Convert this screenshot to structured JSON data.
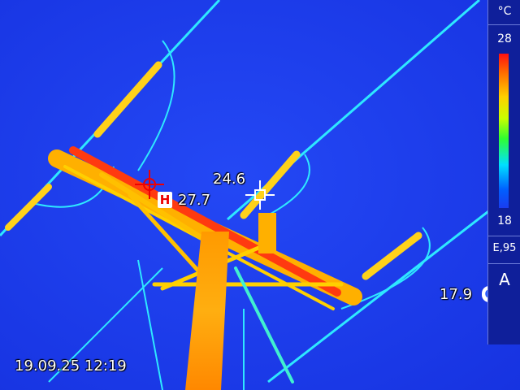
{
  "overlay": {
    "timestamp": "19.09.25 12:19",
    "hot_spot": {
      "badge": "H",
      "value": "27.7"
    },
    "center_spot": {
      "value": "24.6"
    },
    "cold_spot": {
      "badge": "C",
      "value": "17.9"
    }
  },
  "scale_panel": {
    "unit": "°C",
    "max": "28",
    "min": "18",
    "emissivity": "E,95",
    "mode": "A"
  },
  "palette": {
    "background": "#1a3cf0",
    "hot": "#ff1a0a",
    "warm": "#ff9a00",
    "cool": "#2ee8ff"
  }
}
